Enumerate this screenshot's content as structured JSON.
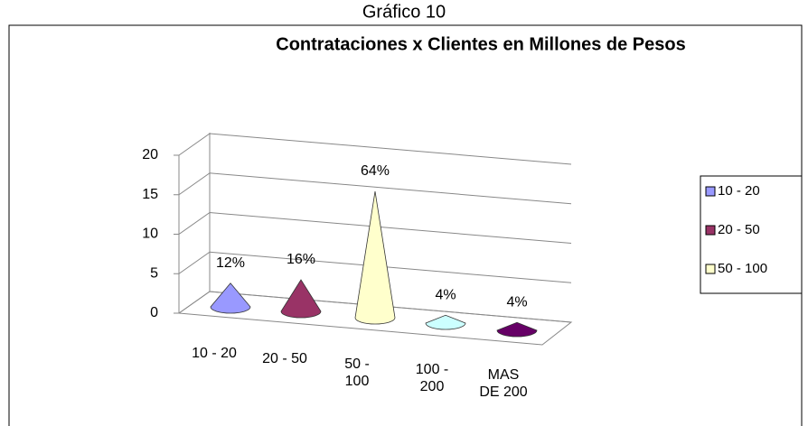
{
  "heading": "Gráfico 10",
  "chart_data": {
    "type": "cone",
    "title": "Contrataciones x Clientes en Millones de Pesos",
    "categories": [
      "10 - 20",
      "20 - 50",
      "50 - 100",
      "100 - 200",
      "MAS DE 200"
    ],
    "values": [
      3,
      4,
      16,
      1,
      1
    ],
    "value_labels": [
      "12%",
      "16%",
      "64%",
      "4%",
      "4%"
    ],
    "colors": [
      "#9999ff",
      "#993366",
      "#ffffcc",
      "#ccffff",
      "#660066"
    ],
    "ylim": [
      0,
      20
    ],
    "yticks": [
      0,
      5,
      10,
      15,
      20
    ],
    "grid": true,
    "legend": {
      "position": "right",
      "entries": [
        0,
        1,
        2
      ]
    }
  }
}
